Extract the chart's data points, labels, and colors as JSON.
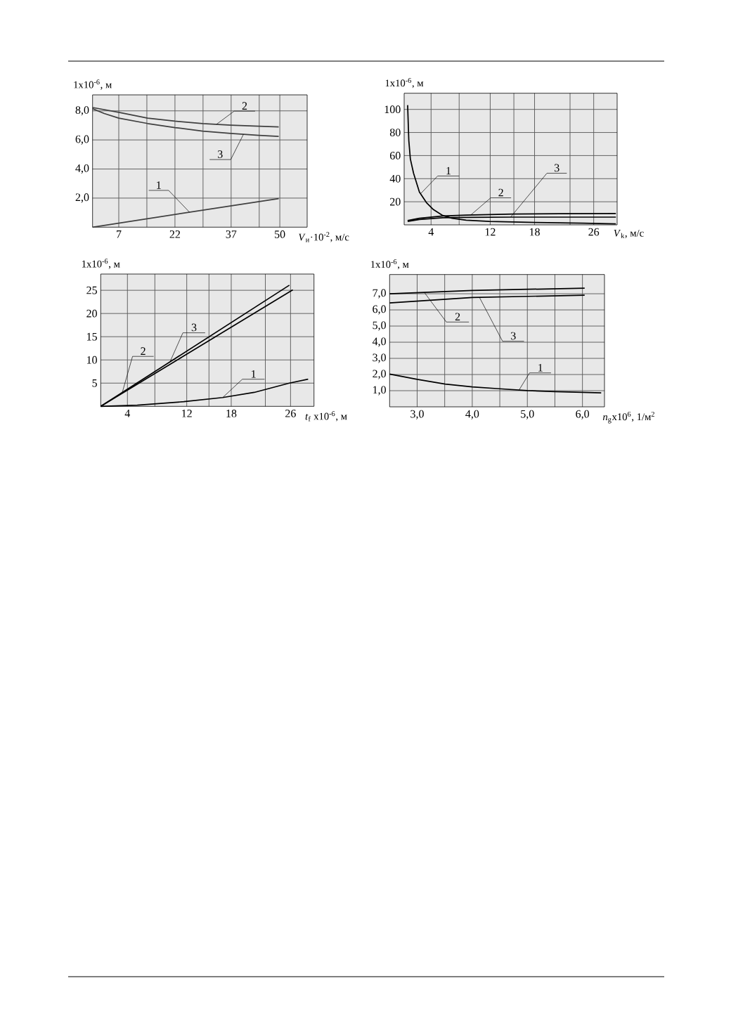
{
  "chart_data": [
    {
      "type": "line",
      "ylabel": "1x10$^{-6}$, м",
      "xlabel": "*V*$_{и}$·10$^{-2}$, м/с",
      "xlim": [
        0,
        57.3
      ],
      "ylim": [
        0,
        9.1
      ],
      "grid": true,
      "xticks": [
        7,
        {
          "value": 14.5,
          "label": null
        },
        22,
        {
          "value": 29.5,
          "label": null
        },
        37,
        {
          "value": 44.5,
          "label": null
        },
        50
      ],
      "yticks": [
        {
          "value": 2,
          "label": "2,0"
        },
        {
          "value": 4,
          "label": "4,0"
        },
        {
          "value": 6,
          "label": "6,0"
        },
        {
          "value": 8,
          "label": "8,0"
        }
      ],
      "series": [
        {
          "name": "1",
          "color": "#404040",
          "x": [
            0,
            49.7
          ],
          "values": [
            0,
            1.97
          ]
        },
        {
          "name": "2",
          "color": "#404040",
          "x": [
            0,
            7,
            14.7,
            22,
            29.4,
            36.9,
            44.4,
            49.7
          ],
          "values": [
            8.23,
            7.9,
            7.5,
            7.29,
            7.13,
            7.02,
            6.94,
            6.89
          ]
        },
        {
          "name": "3",
          "color": "#404040",
          "x": [
            0,
            3.1,
            7,
            14.7,
            22,
            29.4,
            36.9,
            44.4,
            49.7
          ],
          "values": [
            8.15,
            7.82,
            7.5,
            7.13,
            6.85,
            6.61,
            6.45,
            6.32,
            6.24
          ]
        }
      ]
    },
    {
      "type": "line",
      "ylabel": "1x10$^{-6}$, м",
      "xlabel": "*V*$_{k}$, м/с",
      "xlim": [
        0.36,
        29.17
      ],
      "ylim": [
        0,
        114
      ],
      "grid": true,
      "xticks": [
        4,
        {
          "value": 7.8,
          "label": null
        },
        12,
        {
          "value": 15.2,
          "label": null
        },
        18,
        {
          "value": 22.8,
          "label": null
        },
        26
      ],
      "yticks": [
        20,
        40,
        60,
        80,
        100
      ],
      "series": [
        {
          "name": "1",
          "color": "#000000",
          "x": [
            0.83,
            0.99,
            1.2,
            1.63,
            2.42,
            3.37,
            4.32,
            5.58,
            6.85,
            8.75,
            11.9,
            18.2,
            24.6,
            29.0
          ],
          "values": [
            103.7,
            73,
            57,
            44.7,
            28.5,
            19.3,
            13.2,
            8.1,
            5.7,
            4.1,
            3.0,
            2.0,
            1.4,
            0.8
          ]
        },
        {
          "name": "2",
          "color": "#000000",
          "x": [
            0.83,
            2.42,
            5.58,
            8.75,
            15.1,
            21.4,
            29.0
          ],
          "values": [
            3.7,
            5.7,
            7.7,
            8.5,
            9.3,
            9.6,
            9.8
          ]
        },
        {
          "name": "3",
          "color": "#000000",
          "x": [
            0.83,
            2.42,
            5.58,
            8.75,
            15.1,
            21.4,
            29.0
          ],
          "values": [
            3.0,
            4.7,
            6.1,
            6.5,
            6.7,
            6.7,
            6.7
          ]
        }
      ]
    },
    {
      "type": "line",
      "ylabel": "1x10$^{-6}$, м",
      "xlabel": "*t*$_{f}$ x10$^{-6}$, м",
      "xlim": [
        0.4,
        29.16
      ],
      "ylim": [
        0,
        28.5
      ],
      "grid": true,
      "xticks": [
        4,
        {
          "value": 7.7,
          "label": null
        },
        12,
        {
          "value": 15,
          "label": null
        },
        18,
        {
          "value": 22.6,
          "label": null
        },
        26
      ],
      "yticks": [
        5,
        10,
        15,
        20,
        25
      ],
      "series": [
        {
          "name": "1",
          "color": "#000000",
          "x": [
            0.4,
            5.33,
            11.6,
            16.85,
            21.1,
            25.84,
            28.37
          ],
          "values": [
            0,
            0.25,
            1.0,
            1.9,
            3.0,
            5.0,
            5.84
          ]
        },
        {
          "name": "2",
          "color": "#000000",
          "x": [
            0.4,
            26.3
          ],
          "values": [
            0,
            25.1
          ]
        },
        {
          "name": "3",
          "color": "#000000",
          "x": [
            0.4,
            25.84
          ],
          "values": [
            0,
            26.1
          ]
        }
      ]
    },
    {
      "type": "line",
      "ylabel": "1x10$^{-6}$, м",
      "xlabel": "*n*$_{g}$x10$^{6}$, 1/м$^{2}$",
      "xlim": [
        2.5,
        6.4
      ],
      "ylim": [
        0,
        8.19
      ],
      "grid": true,
      "xticks": [
        {
          "value": 3,
          "label": "3,0"
        },
        {
          "value": 3.5,
          "label": null
        },
        {
          "value": 4,
          "label": "4,0"
        },
        {
          "value": 4.5,
          "label": null
        },
        {
          "value": 5,
          "label": "5,0"
        },
        {
          "value": 5.5,
          "label": null
        },
        {
          "value": 6,
          "label": "6,0"
        }
      ],
      "yticks": [
        {
          "value": 1,
          "label": "1,0"
        },
        {
          "value": 2,
          "label": "2,0"
        },
        {
          "value": 3,
          "label": "3,0"
        },
        {
          "value": 4,
          "label": "4,0"
        },
        {
          "value": 5,
          "label": "5,0"
        },
        {
          "value": 6,
          "label": "6,0"
        },
        {
          "value": 7,
          "label": "7,0"
        }
      ],
      "series": [
        {
          "name": "1",
          "color": "#000000",
          "x": [
            2.5,
            3.0,
            3.51,
            4.0,
            4.49,
            5.0,
            5.51,
            6.0,
            6.34
          ],
          "values": [
            2.03,
            1.7,
            1.41,
            1.23,
            1.12,
            1.01,
            0.94,
            0.9,
            0.86
          ]
        },
        {
          "name": "2",
          "color": "#000000",
          "x": [
            2.5,
            4.0,
            6.04
          ],
          "values": [
            7.0,
            7.2,
            7.35
          ]
        },
        {
          "name": "3",
          "color": "#000000",
          "x": [
            2.5,
            4.0,
            6.04
          ],
          "values": [
            6.43,
            6.77,
            6.91
          ]
        }
      ]
    }
  ]
}
